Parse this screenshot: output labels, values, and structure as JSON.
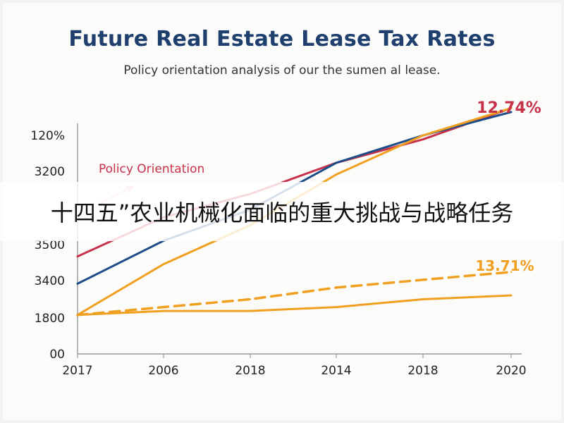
{
  "header": {
    "title": "Future Real Estate Lease Tax Rates",
    "subtitle": "Policy orientation analysis of our the sumen al lease."
  },
  "overlay": {
    "text": "十四五”农业机械化面临的重大挑战与战略任务"
  },
  "chart_data": {
    "type": "line",
    "title": "Future Real Estate Lease Tax Rates",
    "subtitle": "Policy orientation analysis of our the sumen al lease.",
    "xlabel": "",
    "ylabel": "",
    "categories": [
      "2017",
      "2006",
      "2018",
      "2014",
      "2018",
      "2020"
    ],
    "y_tick_labels": [
      "00",
      "1800",
      "3400",
      "3500",
      "3200",
      "120%"
    ],
    "ylim": [
      0,
      6
    ],
    "grid": false,
    "series": [
      {
        "values": [
          2.5,
          3.5,
          4.1,
          4.9,
          5.5,
          6.3
        ],
        "color": "#c8314a",
        "dashed": false
      },
      {
        "values": [
          1.8,
          2.9,
          3.7,
          4.9,
          5.6,
          6.2
        ],
        "color": "#1d4e89",
        "dashed": false
      },
      {
        "values": [
          1.0,
          2.3,
          3.3,
          4.6,
          5.6,
          6.3
        ],
        "color": "#f0a020",
        "dashed": false
      },
      {
        "values": [
          1.0,
          1.2,
          1.4,
          1.7,
          1.9,
          2.1
        ],
        "color": "#f0a020",
        "dashed": true
      },
      {
        "values": [
          1.0,
          1.1,
          1.1,
          1.2,
          1.4,
          1.5
        ],
        "color": "#f0a020",
        "dashed": false
      }
    ],
    "annotations": [
      {
        "text": "12.74%",
        "color": "#c8314a"
      },
      {
        "text": "13.71%",
        "color": "#f0a020"
      },
      {
        "text": "Policy Orientation",
        "color": "#c8314a"
      }
    ]
  }
}
